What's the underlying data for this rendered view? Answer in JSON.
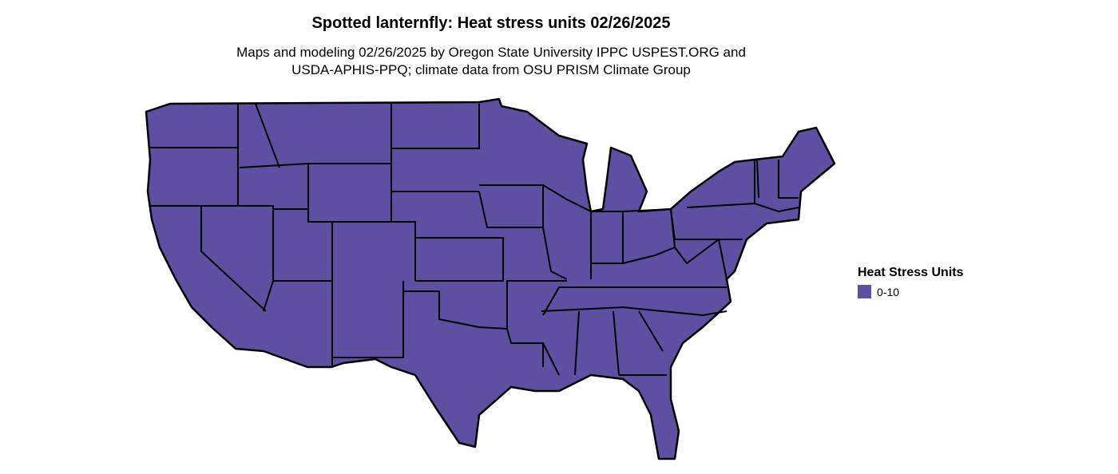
{
  "title": "Spotted lanternfly: Heat stress units 02/26/2025",
  "subtitle_line1": "Maps and modeling 02/26/2025 by Oregon State University IPPC USPEST.ORG and",
  "subtitle_line2": "USDA-APHIS-PPQ; climate data from OSU PRISM Climate Group",
  "map": {
    "region": "Contiguous United States",
    "fill_color": "#5e4fa2",
    "border_color": "#000000",
    "category": "0-10"
  },
  "legend": {
    "title": "Heat Stress Units",
    "items": [
      {
        "label": "0-10",
        "color": "#5e4fa2"
      }
    ]
  }
}
